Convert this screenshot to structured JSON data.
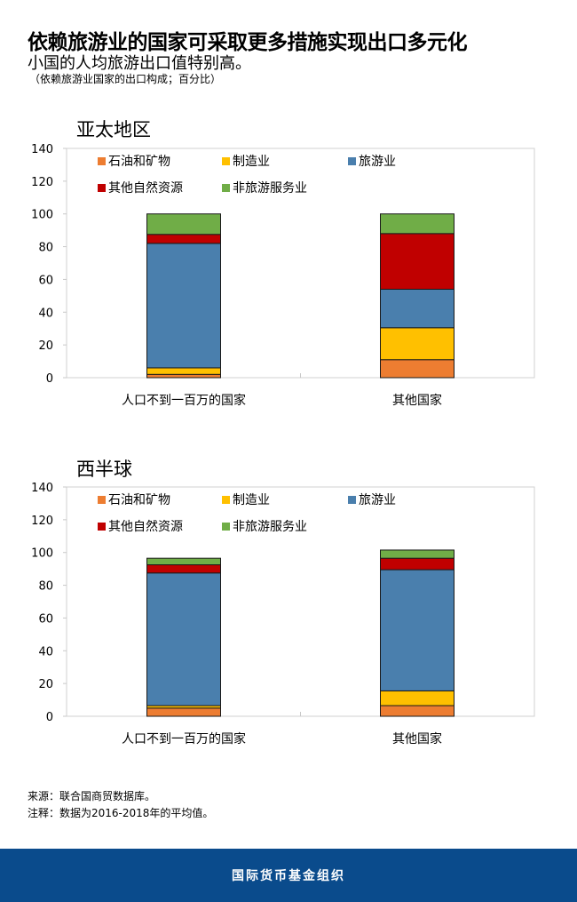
{
  "header": {
    "title": "依赖旅游业的国家可采取更多措施实现出口多元化",
    "subtitle": "小国的人均旅游出口值特别高。",
    "note": "（依赖旅游业国家的出口构成；百分比）"
  },
  "colors": {
    "oil": "#ed7d31",
    "manufacturing": "#ffc000",
    "tourism": "#4a7fad",
    "other_natural": "#c00000",
    "non_tourism_services": "#70ad47",
    "footer": "#0a4b8c"
  },
  "chart_data": [
    {
      "type": "bar",
      "stacked": true,
      "title": "亚太地区",
      "categories": [
        "人口不到一百万的国家",
        "其他国家"
      ],
      "ylim": [
        0,
        140
      ],
      "yticks": [
        "0",
        "20",
        "40",
        "60",
        "80",
        "100",
        "120",
        "140"
      ],
      "legend_position": "top-left",
      "series": [
        {
          "name": "石油和矿物",
          "key": "oil",
          "values": [
            2,
            11
          ]
        },
        {
          "name": "制造业",
          "key": "manufacturing",
          "values": [
            4,
            19.5
          ]
        },
        {
          "name": "旅游业",
          "key": "tourism",
          "values": [
            76,
            23.5
          ]
        },
        {
          "name": "其他自然资源",
          "key": "other_natural",
          "values": [
            5.5,
            34
          ]
        },
        {
          "name": "非旅游服务业",
          "key": "non_tourism_services",
          "values": [
            12.5,
            12
          ]
        }
      ]
    },
    {
      "type": "bar",
      "stacked": true,
      "title": "西半球",
      "categories": [
        "人口不到一百万的国家",
        "其他国家"
      ],
      "ylim": [
        0,
        140
      ],
      "yticks": [
        "0",
        "20",
        "40",
        "60",
        "80",
        "100",
        "120",
        "140"
      ],
      "legend_position": "top-left",
      "series": [
        {
          "name": "石油和矿物",
          "key": "oil",
          "values": [
            5,
            6.5
          ]
        },
        {
          "name": "制造业",
          "key": "manufacturing",
          "values": [
            1.5,
            9
          ]
        },
        {
          "name": "旅游业",
          "key": "tourism",
          "values": [
            81,
            74
          ]
        },
        {
          "name": "其他自然资源",
          "key": "other_natural",
          "values": [
            5,
            7
          ]
        },
        {
          "name": "非旅游服务业",
          "key": "non_tourism_services",
          "values": [
            4,
            5
          ]
        }
      ]
    }
  ],
  "footer": {
    "source": "来源：联合国商贸数据库。",
    "note": "注释：数据为2016-2018年的平均值。",
    "brand": "国际货币基金组织"
  }
}
